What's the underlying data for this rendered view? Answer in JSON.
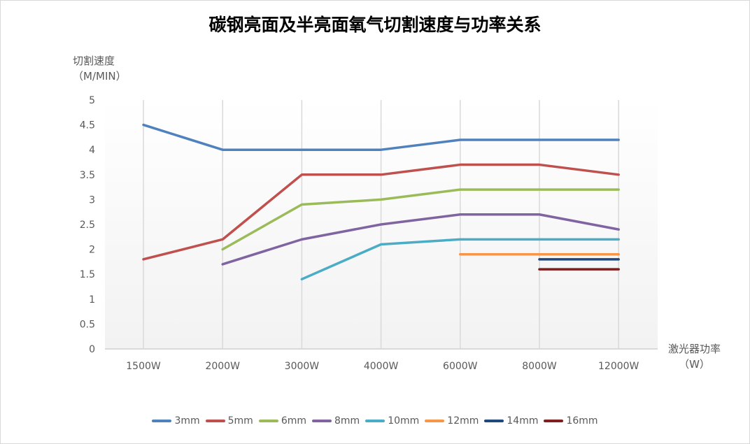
{
  "chart_data": {
    "type": "line",
    "title": "碳钢亮面及半亮面氧气切割速度与功率关系",
    "ylabel": [
      "切割速度",
      "（M/MIN）"
    ],
    "xlabel": [
      "激光器功率",
      "（W）"
    ],
    "categories": [
      "1500W",
      "2000W",
      "3000W",
      "4000W",
      "6000W",
      "8000W",
      "12000W"
    ],
    "ylim": [
      0,
      5
    ],
    "yticks": [
      "0",
      "0.5",
      "1",
      "1.5",
      "2",
      "2.5",
      "3",
      "3.5",
      "4",
      "4.5",
      "5"
    ],
    "grid": "vertical",
    "legend": "bottom",
    "series": [
      {
        "name": "3mm",
        "color": "#4f81bd",
        "values": [
          4.5,
          4.0,
          4.0,
          4.0,
          4.2,
          4.2,
          4.2
        ]
      },
      {
        "name": "5mm",
        "color": "#c0504d",
        "values": [
          1.8,
          2.2,
          3.5,
          3.5,
          3.7,
          3.7,
          3.5
        ]
      },
      {
        "name": "6mm",
        "color": "#9bbb59",
        "values": [
          null,
          2.0,
          2.9,
          3.0,
          3.2,
          3.2,
          3.2
        ]
      },
      {
        "name": "8mm",
        "color": "#8064a2",
        "values": [
          null,
          1.7,
          2.2,
          2.5,
          2.7,
          2.7,
          2.4
        ]
      },
      {
        "name": "10mm",
        "color": "#4bacc6",
        "values": [
          null,
          null,
          1.4,
          2.1,
          2.2,
          2.2,
          2.2
        ]
      },
      {
        "name": "12mm",
        "color": "#f79646",
        "values": [
          null,
          null,
          null,
          null,
          1.9,
          1.9,
          1.9
        ]
      },
      {
        "name": "14mm",
        "color": "#1f497d",
        "values": [
          null,
          null,
          null,
          null,
          null,
          1.8,
          1.8
        ]
      },
      {
        "name": "16mm",
        "color": "#7f1f1f",
        "values": [
          null,
          null,
          null,
          null,
          null,
          1.6,
          1.6
        ]
      }
    ]
  }
}
